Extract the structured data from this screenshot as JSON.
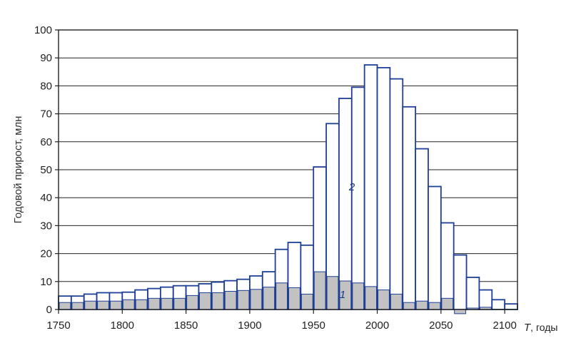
{
  "chart_data": {
    "type": "bar",
    "ylabel": "Годовой прирост, млн",
    "xlabel": {
      "var": "T",
      "unit": ", годы"
    },
    "xlim": [
      1750,
      2110
    ],
    "ylim": [
      0,
      100
    ],
    "xticks": [
      1750,
      1800,
      1850,
      1900,
      1950,
      2000,
      2050,
      2100
    ],
    "yticks": [
      0,
      10,
      20,
      30,
      40,
      50,
      60,
      70,
      80,
      90,
      100
    ],
    "grid": "horizontal",
    "colors": {
      "outline": "#1f3f96",
      "fill1": "#c2c2c2",
      "background": "#ffffff"
    },
    "x": [
      1755,
      1765,
      1775,
      1785,
      1795,
      1805,
      1815,
      1825,
      1835,
      1845,
      1855,
      1865,
      1875,
      1885,
      1895,
      1905,
      1915,
      1925,
      1935,
      1945,
      1955,
      1965,
      1975,
      1985,
      1995,
      2005,
      2015,
      2025,
      2035,
      2045,
      2055,
      2065,
      2075,
      2085,
      2095,
      2105
    ],
    "series": [
      {
        "name": "1",
        "values": [
          2.5,
          2.5,
          3,
          3,
          3,
          3.5,
          3.5,
          4,
          4,
          4,
          5,
          6,
          6,
          6.5,
          6.8,
          7.2,
          8,
          9.5,
          7.8,
          5.5,
          13.5,
          11.8,
          10.2,
          9.5,
          8.2,
          7.0,
          5.5,
          2.5,
          3.0,
          2.5,
          4.0,
          -1.5,
          0.5,
          0.8,
          0,
          0
        ]
      },
      {
        "name": "2",
        "values": [
          4.8,
          4.8,
          5.5,
          6.0,
          6.0,
          6.2,
          7.0,
          7.5,
          8.0,
          8.5,
          8.5,
          9.2,
          9.8,
          10.3,
          10.8,
          12.0,
          13.5,
          21.5,
          24.0,
          23.0,
          51.0,
          66.5,
          75.5,
          79.5,
          87.5,
          86.5,
          82.5,
          72.5,
          57.5,
          44.0,
          31.0,
          19.5,
          11.5,
          7.0,
          3.5,
          2.0
        ]
      }
    ],
    "annotations": [
      "1",
      "2"
    ]
  }
}
